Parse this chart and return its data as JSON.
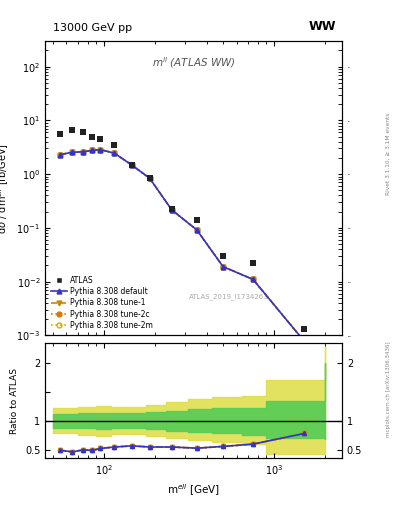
{
  "title_left": "13000 GeV pp",
  "title_right": "WW",
  "panel_title": "m$^{ll}$ (ATLAS WW)",
  "ylabel_main": "d$\\sigma$ / dm$^{ell}$ [fb/GeV]",
  "ylabel_ratio": "Ratio to ATLAS",
  "xlabel": "m$^{ell}$ [GeV]",
  "right_label_top": "Rivet 3.1.10, ≥ 3.1M events",
  "right_label_bot": "mcplots.cern.ch [arXiv:1306.3436]",
  "watermark": "ATLAS_2019_I1734263",
  "atlas_x": [
    55,
    65,
    75,
    85,
    95,
    115,
    145,
    185,
    250,
    350,
    500,
    750,
    1500
  ],
  "atlas_y": [
    5.5,
    6.5,
    6.0,
    5.0,
    4.5,
    3.5,
    1.5,
    0.85,
    0.22,
    0.14,
    0.03,
    0.022,
    0.0013
  ],
  "pythia_x": [
    55,
    65,
    75,
    85,
    95,
    115,
    145,
    185,
    250,
    350,
    500,
    750,
    1500
  ],
  "pythia_default_y": [
    2.3,
    2.55,
    2.6,
    2.75,
    2.85,
    2.45,
    1.48,
    0.84,
    0.215,
    0.092,
    0.019,
    0.011,
    0.00078
  ],
  "pythia_tune1_y": [
    2.3,
    2.55,
    2.6,
    2.75,
    2.85,
    2.45,
    1.48,
    0.84,
    0.215,
    0.092,
    0.019,
    0.011,
    0.00078
  ],
  "pythia_tune2c_y": [
    2.3,
    2.55,
    2.6,
    2.75,
    2.85,
    2.45,
    1.48,
    0.84,
    0.215,
    0.092,
    0.019,
    0.011,
    0.00078
  ],
  "pythia_tune2m_y": [
    2.3,
    2.55,
    2.6,
    2.75,
    2.85,
    2.45,
    1.48,
    0.84,
    0.215,
    0.092,
    0.019,
    0.011,
    0.00078
  ],
  "ratio_x": [
    55,
    65,
    75,
    85,
    95,
    115,
    145,
    185,
    250,
    350,
    500,
    750,
    1500
  ],
  "ratio_default": [
    0.49,
    0.46,
    0.495,
    0.485,
    0.52,
    0.545,
    0.565,
    0.545,
    0.545,
    0.525,
    0.555,
    0.595,
    0.78
  ],
  "ratio_tune1": [
    0.49,
    0.46,
    0.495,
    0.485,
    0.52,
    0.545,
    0.565,
    0.545,
    0.545,
    0.525,
    0.555,
    0.595,
    0.78
  ],
  "ratio_tune2c": [
    0.49,
    0.46,
    0.495,
    0.485,
    0.52,
    0.545,
    0.565,
    0.545,
    0.545,
    0.525,
    0.555,
    0.595,
    0.78
  ],
  "ratio_tune2m": [
    0.49,
    0.46,
    0.495,
    0.485,
    0.52,
    0.545,
    0.565,
    0.545,
    0.545,
    0.525,
    0.555,
    0.595,
    0.78
  ],
  "green_band_x": [
    50,
    70,
    90,
    110,
    140,
    175,
    230,
    310,
    430,
    650,
    900,
    2000
  ],
  "green_band_lo": [
    0.88,
    0.87,
    0.86,
    0.88,
    0.88,
    0.85,
    0.83,
    0.8,
    0.78,
    0.75,
    0.7,
    0.68
  ],
  "green_band_hi": [
    1.12,
    1.13,
    1.14,
    1.13,
    1.13,
    1.15,
    1.17,
    1.2,
    1.22,
    1.22,
    1.35,
    2.0
  ],
  "yellow_band_x": [
    50,
    70,
    90,
    110,
    140,
    175,
    230,
    310,
    430,
    650,
    900,
    2000
  ],
  "yellow_band_lo": [
    0.78,
    0.76,
    0.74,
    0.77,
    0.77,
    0.73,
    0.7,
    0.67,
    0.63,
    0.6,
    0.42,
    0.42
  ],
  "yellow_band_hi": [
    1.22,
    1.24,
    1.26,
    1.24,
    1.24,
    1.28,
    1.32,
    1.38,
    1.42,
    1.43,
    1.7,
    2.3
  ],
  "color_atlas": "#222222",
  "color_default": "#3333cc",
  "color_tune1": "#cc8800",
  "color_tune2c": "#dd7700",
  "color_tune2m": "#ddaa00",
  "color_green": "#55cc55",
  "color_yellow": "#dddd44",
  "ylim_main": [
    0.001,
    300
  ],
  "ylim_ratio": [
    0.35,
    2.35
  ],
  "xlim": [
    45,
    2500
  ]
}
